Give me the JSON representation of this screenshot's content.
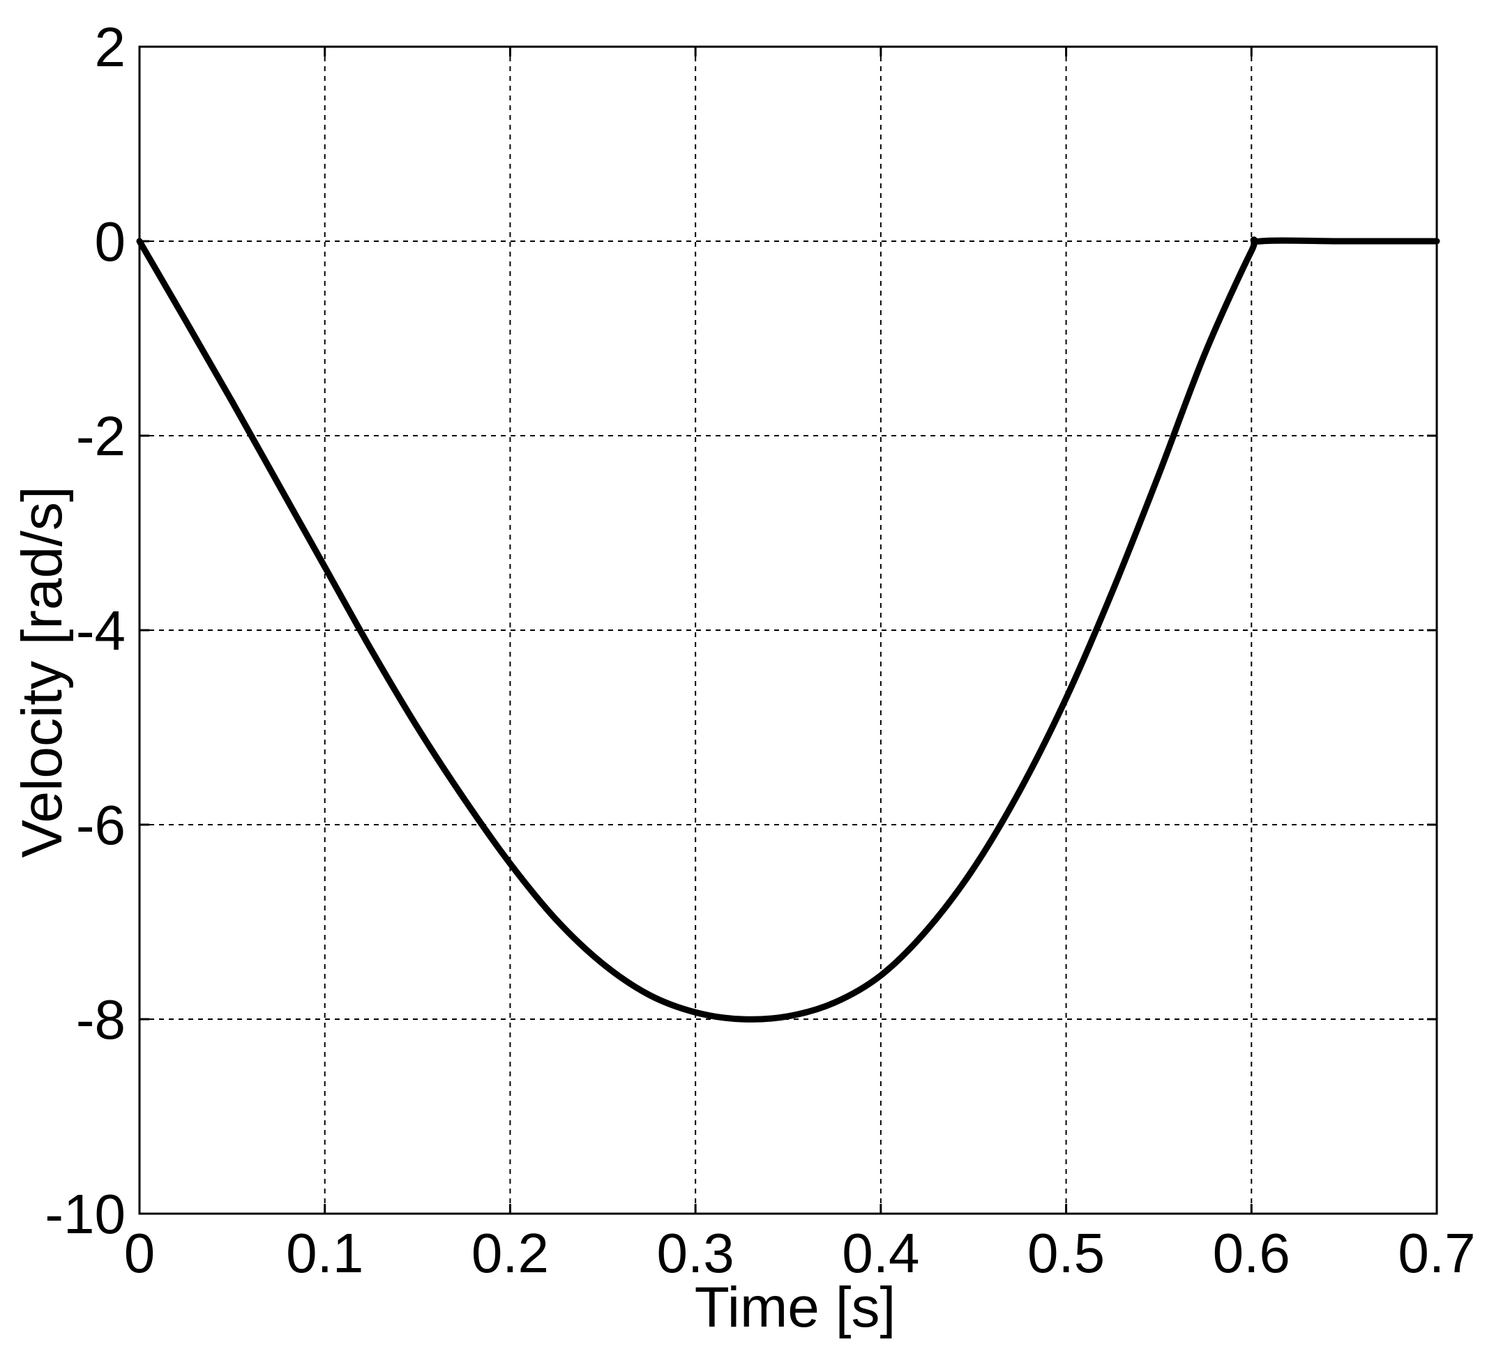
{
  "chart_data": {
    "type": "line",
    "title": "",
    "xlabel": "Time [s]",
    "ylabel": "Velocity [rad/s]",
    "xlim": [
      0,
      0.7
    ],
    "ylim": [
      -10,
      2
    ],
    "xticks": [
      0,
      0.1,
      0.2,
      0.3,
      0.4,
      0.5,
      0.6,
      0.7
    ],
    "xtick_labels": [
      "0",
      "0.1",
      "0.2",
      "0.3",
      "0.4",
      "0.5",
      "0.6",
      "0.7"
    ],
    "yticks": [
      -10,
      -8,
      -6,
      -4,
      -2,
      0,
      2
    ],
    "ytick_labels": [
      "-10",
      "-8",
      "-6",
      "-4",
      "-2",
      "0",
      "2"
    ],
    "grid": true,
    "line_color": "#000000",
    "series": [
      {
        "x": [
          0,
          0.025,
          0.05,
          0.075,
          0.1,
          0.125,
          0.15,
          0.175,
          0.2,
          0.225,
          0.25,
          0.275,
          0.3,
          0.325,
          0.35,
          0.375,
          0.4,
          0.425,
          0.45,
          0.475,
          0.5,
          0.525,
          0.55,
          0.575,
          0.6,
          0.605,
          0.65,
          0.7
        ],
        "values": [
          0,
          -0.82,
          -1.65,
          -2.5,
          -3.35,
          -4.2,
          -5.0,
          -5.73,
          -6.4,
          -6.98,
          -7.43,
          -7.75,
          -7.93,
          -8.0,
          -7.97,
          -7.83,
          -7.55,
          -7.08,
          -6.45,
          -5.65,
          -4.7,
          -3.6,
          -2.4,
          -1.15,
          -0.1,
          0,
          0,
          0
        ]
      }
    ]
  }
}
